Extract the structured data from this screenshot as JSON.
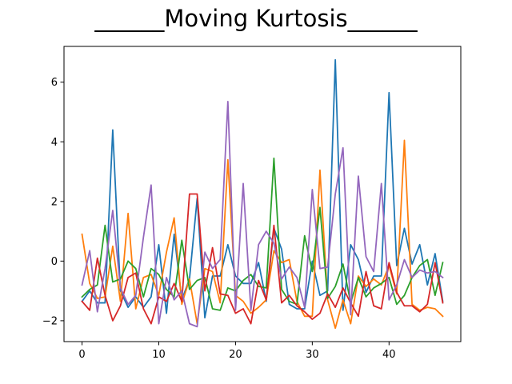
{
  "chart_data": {
    "type": "line",
    "title": "______Moving Kurtosis______",
    "xlabel": "",
    "ylabel": "",
    "xlim": [
      -2.35,
      49.35
    ],
    "ylim": [
      -2.7,
      7.2
    ],
    "xticks": [
      0,
      10,
      20,
      30,
      40
    ],
    "yticks": [
      -2,
      0,
      2,
      4,
      6
    ],
    "grid": false,
    "legend": "none",
    "series": [
      {
        "color": "#1f77b4",
        "values": [
          -1.35,
          -1.0,
          -1.4,
          -1.4,
          4.4,
          -1.0,
          -1.55,
          -1.2,
          -1.55,
          -1.2,
          0.55,
          -1.75,
          0.9,
          -1.3,
          -0.6,
          2.1,
          -1.9,
          -0.5,
          -0.5,
          0.55,
          -0.5,
          -0.75,
          -0.75,
          -0.05,
          -1.35,
          1.1,
          0.4,
          -1.45,
          -1.6,
          -1.6,
          0.0,
          -1.15,
          -1.0,
          6.75,
          -1.65,
          0.55,
          0.05,
          -1.05,
          -0.5,
          -0.5,
          5.65,
          -0.15,
          1.1,
          -0.1,
          0.55,
          -0.8,
          0.25,
          -1.35
        ]
      },
      {
        "color": "#ff7f0e",
        "values": [
          0.9,
          -0.75,
          -1.25,
          -1.2,
          0.5,
          -1.35,
          1.6,
          -1.6,
          -0.55,
          -0.45,
          -1.15,
          0.3,
          1.45,
          -1.45,
          -0.6,
          -2.1,
          -0.25,
          -0.35,
          -1.4,
          3.4,
          -1.15,
          -1.35,
          -1.75,
          -1.55,
          -1.3,
          0.35,
          -0.05,
          0.05,
          -1.35,
          -1.85,
          -1.85,
          3.05,
          -1.3,
          -2.25,
          -1.3,
          -2.1,
          -0.5,
          -0.85,
          -0.6,
          -0.8,
          -0.15,
          -1.1,
          4.05,
          -1.45,
          -1.65,
          -1.55,
          -1.6,
          -1.85
        ]
      },
      {
        "color": "#2ca02c",
        "values": [
          -1.2,
          -0.95,
          -0.8,
          1.2,
          -0.7,
          -0.6,
          0.0,
          -0.25,
          -1.2,
          -0.25,
          -0.45,
          -0.95,
          -1.2,
          0.7,
          -0.95,
          -0.65,
          -0.55,
          -1.6,
          -1.65,
          -0.9,
          -1.0,
          -0.65,
          -0.45,
          -0.85,
          -0.9,
          3.45,
          -0.95,
          -1.35,
          -1.45,
          0.85,
          -0.35,
          1.8,
          -1.25,
          -0.85,
          -0.1,
          -1.4,
          -0.55,
          -1.2,
          -0.9,
          -0.75,
          -0.55,
          -1.45,
          -1.15,
          -0.55,
          -0.15,
          0.05,
          -1.15,
          -0.05
        ]
      },
      {
        "color": "#d62728",
        "values": [
          -1.35,
          -1.65,
          0.1,
          -1.15,
          -2.0,
          -1.5,
          -0.55,
          -0.4,
          -1.6,
          -2.1,
          -1.2,
          -1.35,
          -0.75,
          -1.35,
          2.25,
          2.25,
          -1.0,
          0.45,
          -1.1,
          -1.15,
          -1.75,
          -1.6,
          -2.1,
          -0.65,
          -1.3,
          1.2,
          -1.4,
          -1.15,
          -1.5,
          -1.7,
          -1.95,
          -1.75,
          -1.1,
          -1.55,
          -0.9,
          -1.4,
          -1.85,
          -0.35,
          -1.5,
          -1.6,
          -0.05,
          -1.05,
          -1.5,
          -1.5,
          -1.7,
          -1.45,
          -0.05,
          -1.4
        ]
      },
      {
        "color": "#9467bd",
        "values": [
          -0.8,
          0.35,
          -1.7,
          -0.25,
          1.7,
          -0.9,
          -1.45,
          -1.15,
          0.8,
          2.55,
          -2.1,
          -0.55,
          -1.3,
          -1.0,
          -2.1,
          -2.2,
          0.3,
          -0.25,
          0.05,
          5.35,
          -1.65,
          2.6,
          -1.65,
          0.55,
          1.0,
          0.6,
          -0.6,
          -0.2,
          -0.55,
          -1.55,
          2.4,
          -0.25,
          -0.2,
          2.25,
          3.8,
          -1.8,
          2.85,
          0.15,
          -0.35,
          2.6,
          -1.3,
          -0.8,
          0.05,
          -0.55,
          -0.3,
          -0.4,
          -0.35,
          -0.55
        ]
      }
    ]
  }
}
